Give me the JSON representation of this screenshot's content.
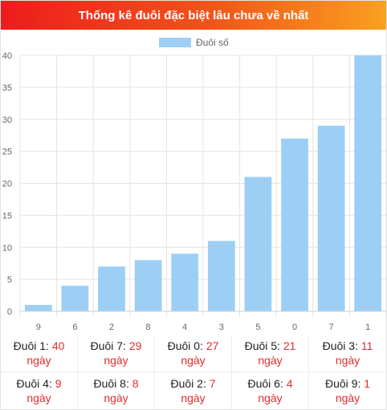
{
  "header": {
    "title": "Thống kê đuôi đặc biệt lâu chưa về nhất"
  },
  "chart_data": {
    "type": "bar",
    "title": "",
    "xlabel": "",
    "ylabel": "",
    "legend": {
      "label": "Đuôi số",
      "placement": "top-center"
    },
    "categories": [
      "9",
      "6",
      "2",
      "8",
      "4",
      "3",
      "5",
      "0",
      "7",
      "1"
    ],
    "series": [
      {
        "name": "Đuôi số",
        "values": [
          1,
          4,
          7,
          8,
          9,
          11,
          21,
          27,
          29,
          40
        ]
      }
    ],
    "ylim": [
      0,
      40
    ],
    "yticks": [
      "0",
      "5",
      "10",
      "15",
      "20",
      "25",
      "30",
      "35",
      "40"
    ],
    "grid": true,
    "bar_color": "#9dcff5"
  },
  "stats": {
    "unit": "ngày",
    "items": [
      {
        "label": "Đuôi 1:",
        "value": "40"
      },
      {
        "label": "Đuôi 7:",
        "value": "29"
      },
      {
        "label": "Đuôi 0:",
        "value": "27"
      },
      {
        "label": "Đuôi 5:",
        "value": "21"
      },
      {
        "label": "Đuôi 3:",
        "value": "11"
      },
      {
        "label": "Đuôi 4:",
        "value": "9"
      },
      {
        "label": "Đuôi 8:",
        "value": "8"
      },
      {
        "label": "Đuôi 2:",
        "value": "7"
      },
      {
        "label": "Đuôi 6:",
        "value": "4"
      },
      {
        "label": "Đuôi 9:",
        "value": "1"
      }
    ]
  },
  "colors": {
    "header_start": "#ee1c1c",
    "header_end": "#f9a11f",
    "value_red": "#e42b2b"
  }
}
